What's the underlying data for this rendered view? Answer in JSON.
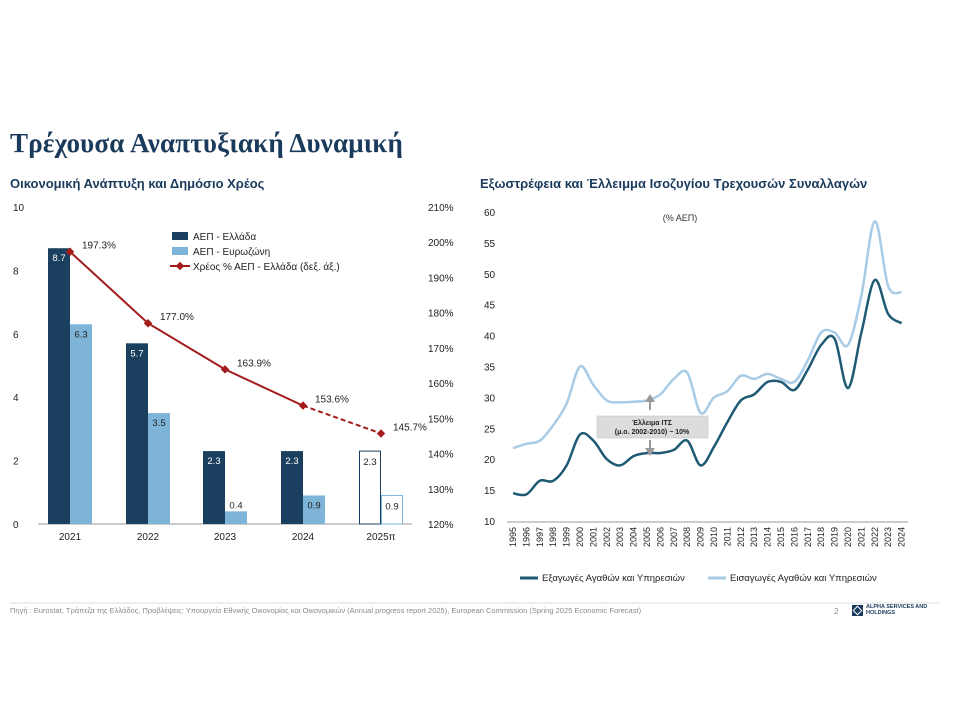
{
  "page": {
    "title": "Τρέχουσα Αναπτυξιακή Δυναμική",
    "left_subtitle": "Οικονομική Ανάπτυξη και Δημόσιο Χρέος",
    "right_subtitle": "Εξωστρέφεια και Έλλειμμα Ισοζυγίου Τρεχουσών Συναλλαγών",
    "footer": "Πηγή : Eurostat, Τράπεζα της Ελλάδος, Προβλέψεις: Υπουργείο Εθνικής Οικονομίας και Οικονομικών (Annual progress report 2025), European Commission (Spring 2025 Economic Forecast)",
    "page_number": "2",
    "logo_text": "ALPHA SERVICES AND HOLDINGS"
  },
  "colors": {
    "navy": "#1b3f5e",
    "light_blue": "#7fb4d9",
    "debt_red": "#a31c1c",
    "exports": "#1f5a75",
    "imports": "#a8cbe6"
  },
  "chart_data": [
    {
      "type": "bar",
      "categories": [
        "2021",
        "2022",
        "2023",
        "2024",
        "2025π"
      ],
      "series": [
        {
          "name": "ΑΕΠ - Ελλάδα",
          "values": [
            8.7,
            5.7,
            2.3,
            2.3,
            2.3
          ],
          "labels": [
            "8.7",
            "5.7",
            "2.3",
            "2.3",
            "2.3"
          ],
          "forecast_last": true
        },
        {
          "name": "ΑΕΠ - Ευρωζώνη",
          "values": [
            6.3,
            3.5,
            0.4,
            0.9,
            0.9
          ],
          "labels": [
            "6.3",
            "3.5",
            "0.4",
            "0.9",
            "0.9"
          ],
          "forecast_last": true
        },
        {
          "name": "Χρέος % ΑΕΠ - Ελλάδα (δεξ. άξ.)",
          "axis": "right",
          "line": true,
          "values": [
            197.3,
            177.0,
            163.9,
            153.6,
            145.7
          ],
          "labels": [
            "197.3%",
            "177.0%",
            "163.9%",
            "153.6%",
            "145.7%"
          ]
        }
      ],
      "ylim": [
        0,
        10
      ],
      "yticks": [
        "0",
        "2",
        "4",
        "6",
        "8",
        "10"
      ],
      "y2lim": [
        120,
        210
      ],
      "y2ticks": [
        "120%",
        "130%",
        "140%",
        "150%",
        "160%",
        "170%",
        "180%",
        "190%",
        "200%",
        "210%"
      ],
      "legend": "top-center"
    },
    {
      "type": "line",
      "annotation_unit": "(% ΑΕΠ)",
      "x": [
        "1995",
        "1996",
        "1997",
        "1998",
        "1999",
        "2000",
        "2001",
        "2002",
        "2003",
        "2004",
        "2005",
        "2006",
        "2007",
        "2008",
        "2009",
        "2010",
        "2011",
        "2012",
        "2013",
        "2014",
        "2015",
        "2016",
        "2017",
        "2018",
        "2019",
        "2020",
        "2021",
        "2022",
        "2023",
        "2024"
      ],
      "series": [
        {
          "name": "Εξαγωγές Αγαθών και Υπηρεσιών",
          "values": [
            14.5,
            14.3,
            16.5,
            16.5,
            19.0,
            24.0,
            23.0,
            20.0,
            19.0,
            20.5,
            21.0,
            21.0,
            21.5,
            23.0,
            19.0,
            22.0,
            26.0,
            29.5,
            30.5,
            32.5,
            32.5,
            31.2,
            34.5,
            38.5,
            39.5,
            31.5,
            40.5,
            49.0,
            43.5,
            42.0
          ]
        },
        {
          "name": "Εισαγωγές Αγαθών και Υπηρεσιών",
          "values": [
            21.8,
            22.5,
            23.0,
            25.5,
            29.0,
            35.0,
            32.0,
            29.5,
            29.2,
            29.3,
            29.5,
            30.5,
            33.0,
            34.0,
            27.5,
            30.0,
            31.0,
            33.5,
            33.0,
            33.8,
            33.0,
            32.5,
            36.0,
            40.5,
            40.5,
            38.5,
            46.5,
            58.5,
            48.0,
            47.0
          ]
        }
      ],
      "ylim": [
        10,
        60
      ],
      "yticks": [
        "10",
        "15",
        "20",
        "25",
        "30",
        "35",
        "40",
        "45",
        "50",
        "55",
        "60"
      ],
      "annotation": {
        "line1": "Έλλειμα ΙΤΣ",
        "line2": "(μ.ο. 2002-2010) ~ 10%"
      },
      "legend": "bottom"
    }
  ]
}
